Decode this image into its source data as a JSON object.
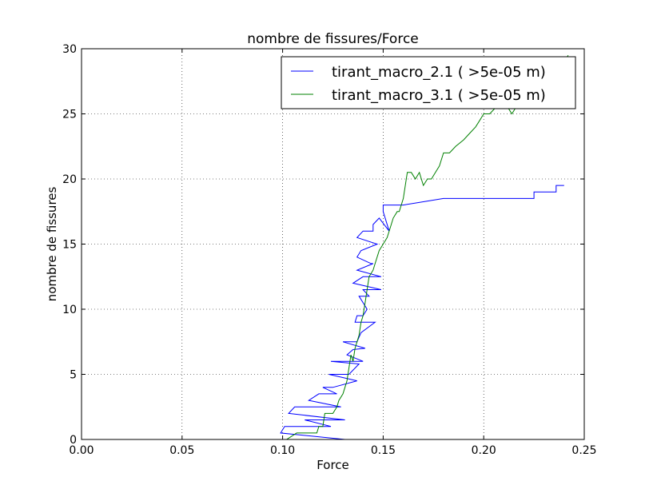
{
  "chart_data": {
    "type": "line",
    "title": "nombre de fissures/Force",
    "xlabel": "Force",
    "ylabel": "nombre de fissures",
    "xlim": [
      0.0,
      0.25
    ],
    "ylim": [
      0,
      30
    ],
    "xticks": [
      "0.00",
      "0.05",
      "0.10",
      "0.15",
      "0.20",
      "0.25"
    ],
    "yticks": [
      "0",
      "5",
      "10",
      "15",
      "20",
      "25",
      "30"
    ],
    "grid": true,
    "legend_position": "top-right",
    "series": [
      {
        "name": "tirant_macro_2.1 ( >5e-05 m)",
        "color": "#0000ff",
        "x": [
          0.131,
          0.099,
          0.101,
          0.124,
          0.111,
          0.131,
          0.103,
          0.106,
          0.129,
          0.113,
          0.118,
          0.127,
          0.12,
          0.125,
          0.137,
          0.123,
          0.133,
          0.138,
          0.124,
          0.14,
          0.132,
          0.135,
          0.141,
          0.13,
          0.137,
          0.139,
          0.146,
          0.136,
          0.137,
          0.14,
          0.142,
          0.138,
          0.143,
          0.14,
          0.149,
          0.135,
          0.14,
          0.149,
          0.137,
          0.145,
          0.144,
          0.137,
          0.139,
          0.147,
          0.137,
          0.14,
          0.14,
          0.143,
          0.145,
          0.145,
          0.148,
          0.153,
          0.15,
          0.15,
          0.16,
          0.18,
          0.225,
          0.225,
          0.236,
          0.236,
          0.24
        ],
        "y": [
          0,
          0.5,
          1,
          1,
          1.5,
          1.5,
          2,
          2.5,
          2.5,
          3,
          3.5,
          3.5,
          4,
          4,
          4.5,
          5,
          5,
          5.8,
          6,
          6,
          6.5,
          6.9,
          7,
          7.5,
          7.5,
          8.2,
          9,
          9,
          9.5,
          9.5,
          10,
          11,
          11,
          11.5,
          11.5,
          12,
          12.5,
          12.5,
          13,
          13.5,
          13.5,
          14,
          14.5,
          15,
          15.5,
          16,
          16,
          16,
          16,
          16.5,
          17,
          16,
          17.5,
          18,
          18,
          18.5,
          18.5,
          19,
          19,
          19.5,
          19.5
        ]
      },
      {
        "name": "tirant_macro_3.1 ( >5e-05 m)",
        "color": "#008000",
        "x": [
          0.1,
          0.102,
          0.107,
          0.11,
          0.117,
          0.118,
          0.12,
          0.121,
          0.125,
          0.127,
          0.128,
          0.13,
          0.131,
          0.132,
          0.133,
          0.134,
          0.135,
          0.136,
          0.137,
          0.138,
          0.139,
          0.14,
          0.141,
          0.142,
          0.143,
          0.145,
          0.146,
          0.148,
          0.15,
          0.152,
          0.154,
          0.155,
          0.157,
          0.158,
          0.16,
          0.162,
          0.164,
          0.166,
          0.168,
          0.17,
          0.172,
          0.174,
          0.176,
          0.178,
          0.18,
          0.183,
          0.186,
          0.19,
          0.193,
          0.196,
          0.198,
          0.2,
          0.203,
          0.206,
          0.209,
          0.212,
          0.214,
          0.216,
          0.218,
          0.22,
          0.223,
          0.225,
          0.228,
          0.23,
          0.233,
          0.236,
          0.238,
          0.24,
          0.242
        ],
        "y": [
          0,
          0,
          0.5,
          0.5,
          0.5,
          1,
          1,
          2,
          2,
          2.5,
          3,
          3.5,
          4,
          4.5,
          5.5,
          6.5,
          6,
          7,
          7.5,
          8,
          9,
          9.5,
          10.5,
          11.5,
          12.5,
          13,
          13.5,
          14.5,
          15,
          15.5,
          16.5,
          17,
          17.5,
          17.5,
          18.5,
          20.5,
          20.5,
          20,
          20.5,
          19.5,
          20,
          20,
          20.5,
          21,
          22,
          22,
          22.5,
          23,
          23.5,
          24,
          24.5,
          25,
          25,
          25.5,
          26,
          25.5,
          25,
          25.5,
          26,
          26.5,
          27,
          27,
          27.5,
          27.5,
          28,
          28,
          28.5,
          29,
          29.5
        ]
      }
    ]
  }
}
